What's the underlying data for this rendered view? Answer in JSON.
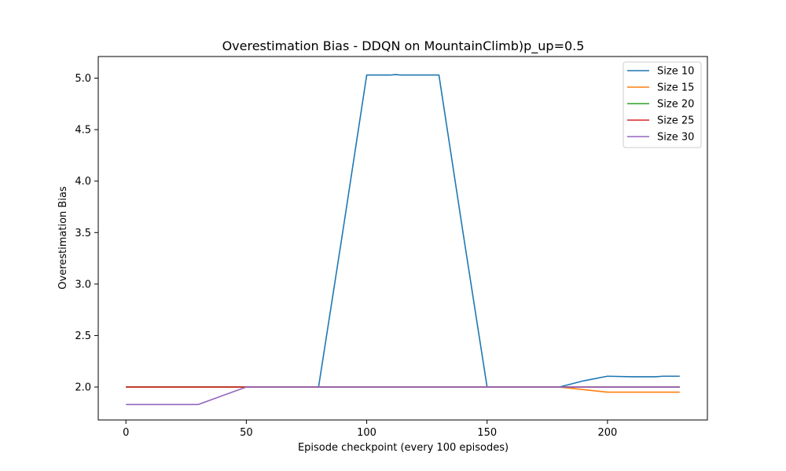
{
  "chart_data": {
    "type": "line",
    "title": "Overestimation Bias - DDQN on MountainClimb)p_up=0.5",
    "xlabel": "Episode checkpoint (every 100 episodes)",
    "ylabel": "Overestimation Bias",
    "xlim": [
      -11.5,
      241.5
    ],
    "ylim": [
      1.68,
      5.21
    ],
    "xticks": [
      0,
      50,
      100,
      150,
      200
    ],
    "yticks": [
      2.0,
      2.5,
      3.0,
      3.5,
      4.0,
      4.5,
      5.0
    ],
    "xtick_labels": [
      "0",
      "50",
      "100",
      "150",
      "200"
    ],
    "ytick_labels": [
      "2.0",
      "2.5",
      "3.0",
      "3.5",
      "4.0",
      "4.5",
      "5.0"
    ],
    "grid": false,
    "legend_position": "top-right",
    "series": [
      {
        "name": "Size 10",
        "color": "#1f77b4",
        "points": [
          [
            0,
            2.0
          ],
          [
            10,
            2.0
          ],
          [
            20,
            2.0
          ],
          [
            30,
            2.0
          ],
          [
            40,
            2.0
          ],
          [
            50,
            2.0
          ],
          [
            60,
            2.0
          ],
          [
            70,
            2.0
          ],
          [
            80,
            2.0
          ],
          [
            90,
            3.5
          ],
          [
            100,
            5.03
          ],
          [
            110,
            5.03
          ],
          [
            112,
            5.035
          ],
          [
            114,
            5.03
          ],
          [
            120,
            5.03
          ],
          [
            130,
            5.03
          ],
          [
            140,
            3.5
          ],
          [
            150,
            2.0
          ],
          [
            160,
            2.0
          ],
          [
            170,
            2.0
          ],
          [
            180,
            2.0
          ],
          [
            185,
            2.03
          ],
          [
            190,
            2.06
          ],
          [
            200,
            2.105
          ],
          [
            210,
            2.1
          ],
          [
            220,
            2.1
          ],
          [
            223,
            2.105
          ],
          [
            230,
            2.105
          ]
        ]
      },
      {
        "name": "Size 15",
        "color": "#ff7f0e",
        "points": [
          [
            0,
            2.0
          ],
          [
            10,
            2.0
          ],
          [
            20,
            2.0
          ],
          [
            30,
            2.0
          ],
          [
            40,
            2.0
          ],
          [
            50,
            2.0
          ],
          [
            60,
            2.0
          ],
          [
            70,
            2.0
          ],
          [
            80,
            2.0
          ],
          [
            90,
            2.0
          ],
          [
            100,
            2.0
          ],
          [
            110,
            2.0
          ],
          [
            120,
            2.0
          ],
          [
            130,
            2.0
          ],
          [
            140,
            2.0
          ],
          [
            150,
            2.0
          ],
          [
            160,
            2.0
          ],
          [
            170,
            2.0
          ],
          [
            180,
            2.0
          ],
          [
            190,
            1.975
          ],
          [
            200,
            1.95
          ],
          [
            210,
            1.95
          ],
          [
            220,
            1.95
          ],
          [
            230,
            1.95
          ]
        ]
      },
      {
        "name": "Size 20",
        "color": "#2ca02c",
        "points": [
          [
            0,
            2.0
          ],
          [
            10,
            2.0
          ],
          [
            20,
            2.0
          ],
          [
            30,
            2.0
          ],
          [
            40,
            2.0
          ],
          [
            50,
            2.0
          ],
          [
            60,
            2.0
          ],
          [
            70,
            2.0
          ],
          [
            80,
            2.0
          ],
          [
            90,
            2.0
          ],
          [
            100,
            2.0
          ],
          [
            110,
            2.0
          ],
          [
            120,
            2.0
          ],
          [
            130,
            2.0
          ],
          [
            140,
            2.0
          ],
          [
            150,
            2.0
          ],
          [
            160,
            2.0
          ],
          [
            170,
            2.0
          ],
          [
            180,
            2.0
          ],
          [
            190,
            2.0
          ],
          [
            200,
            2.0
          ],
          [
            210,
            2.0
          ],
          [
            220,
            2.0
          ],
          [
            230,
            2.0
          ]
        ]
      },
      {
        "name": "Size 25",
        "color": "#d62728",
        "points": [
          [
            0,
            2.0
          ],
          [
            10,
            2.0
          ],
          [
            20,
            2.0
          ],
          [
            30,
            2.0
          ],
          [
            40,
            2.0
          ],
          [
            50,
            2.0
          ],
          [
            60,
            2.0
          ],
          [
            70,
            2.0
          ],
          [
            80,
            2.0
          ],
          [
            90,
            2.0
          ],
          [
            100,
            2.0
          ],
          [
            110,
            2.0
          ],
          [
            120,
            2.0
          ],
          [
            130,
            2.0
          ],
          [
            140,
            2.0
          ],
          [
            150,
            2.0
          ],
          [
            160,
            2.0
          ],
          [
            170,
            2.0
          ],
          [
            180,
            2.0
          ],
          [
            190,
            2.0
          ],
          [
            200,
            2.0
          ],
          [
            210,
            2.0
          ],
          [
            220,
            2.0
          ],
          [
            230,
            2.0
          ]
        ]
      },
      {
        "name": "Size 30",
        "color": "#9467bd",
        "points": [
          [
            0,
            1.83
          ],
          [
            10,
            1.83
          ],
          [
            20,
            1.83
          ],
          [
            30,
            1.83
          ],
          [
            40,
            1.915
          ],
          [
            50,
            2.0
          ],
          [
            60,
            2.0
          ],
          [
            70,
            2.0
          ],
          [
            80,
            2.0
          ],
          [
            90,
            2.0
          ],
          [
            100,
            2.0
          ],
          [
            110,
            2.0
          ],
          [
            120,
            2.0
          ],
          [
            130,
            2.0
          ],
          [
            140,
            2.0
          ],
          [
            150,
            2.0
          ],
          [
            160,
            2.0
          ],
          [
            170,
            2.0
          ],
          [
            180,
            2.0
          ],
          [
            190,
            2.0
          ],
          [
            200,
            2.0
          ],
          [
            210,
            2.0
          ],
          [
            220,
            2.0
          ],
          [
            230,
            2.0
          ]
        ]
      }
    ]
  }
}
